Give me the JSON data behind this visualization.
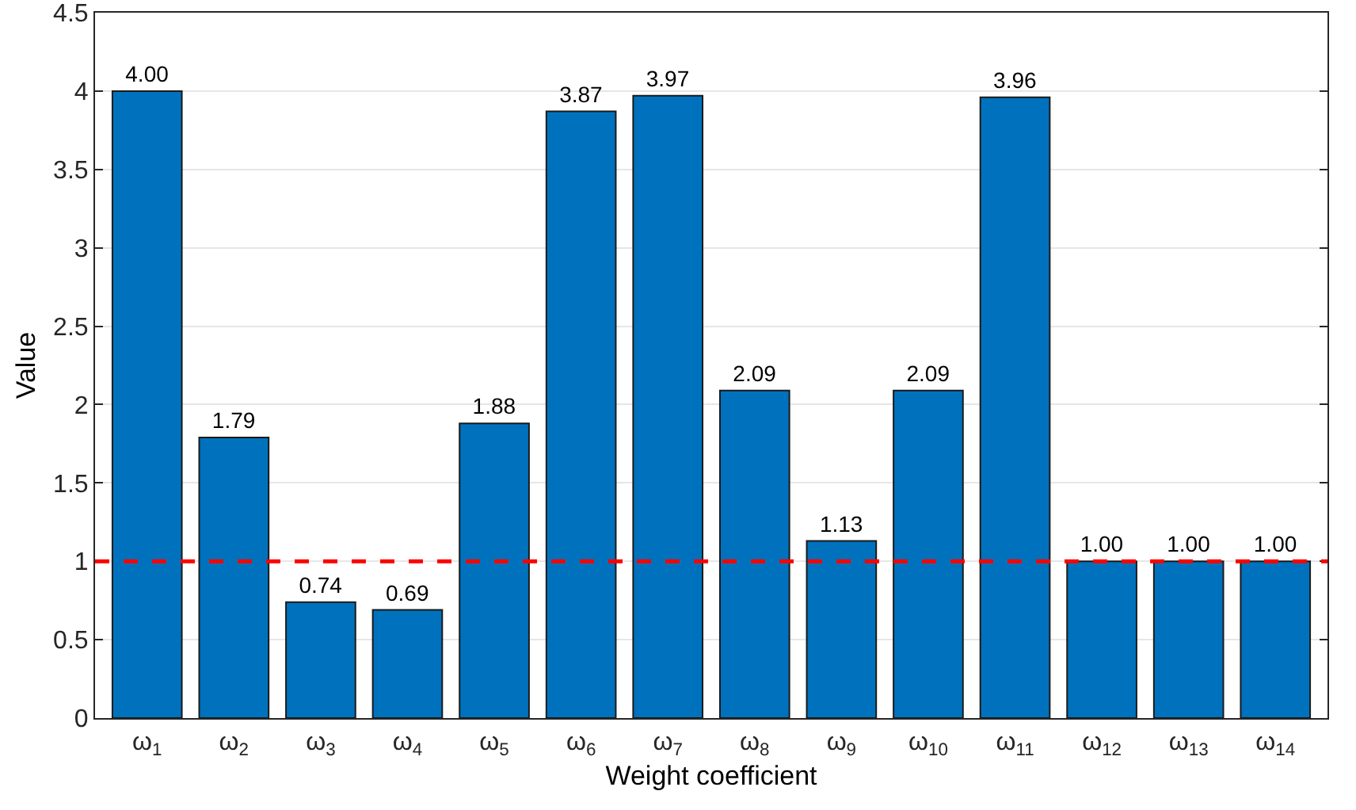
{
  "chart_data": {
    "type": "bar",
    "xlabel": "Weight coefficient",
    "ylabel": "Value",
    "categories": [
      "ω$_{1}$",
      "ω$_{2}$",
      "ω$_{3}$",
      "ω$_{4}$",
      "ω$_{5}$",
      "ω$_{6}$",
      "ω$_{7}$",
      "ω$_{8}$",
      "ω$_{9}$",
      "ω$_{10}$",
      "ω$_{11}$",
      "ω$_{12}$",
      "ω$_{13}$",
      "ω$_{14}$"
    ],
    "values": [
      4.0,
      1.79,
      0.74,
      0.69,
      1.88,
      3.87,
      3.97,
      2.09,
      1.13,
      2.09,
      3.96,
      1.0,
      1.0,
      1.0
    ],
    "value_labels": [
      "4.00",
      "1.79",
      "0.74",
      "0.69",
      "1.88",
      "3.87",
      "3.97",
      "2.09",
      "1.13",
      "2.09",
      "3.96",
      "1.00",
      "1.00",
      "1.00"
    ],
    "color": "#0072bd",
    "ylim": [
      0,
      4.5
    ],
    "yticks": [
      0,
      0.5,
      1,
      1.5,
      2,
      2.5,
      3,
      3.5,
      4,
      4.5
    ],
    "grid": "y",
    "ref_lines": [
      {
        "axis": "y",
        "value": 1,
        "color": "#ff0000",
        "line_style": "dashed"
      }
    ]
  }
}
